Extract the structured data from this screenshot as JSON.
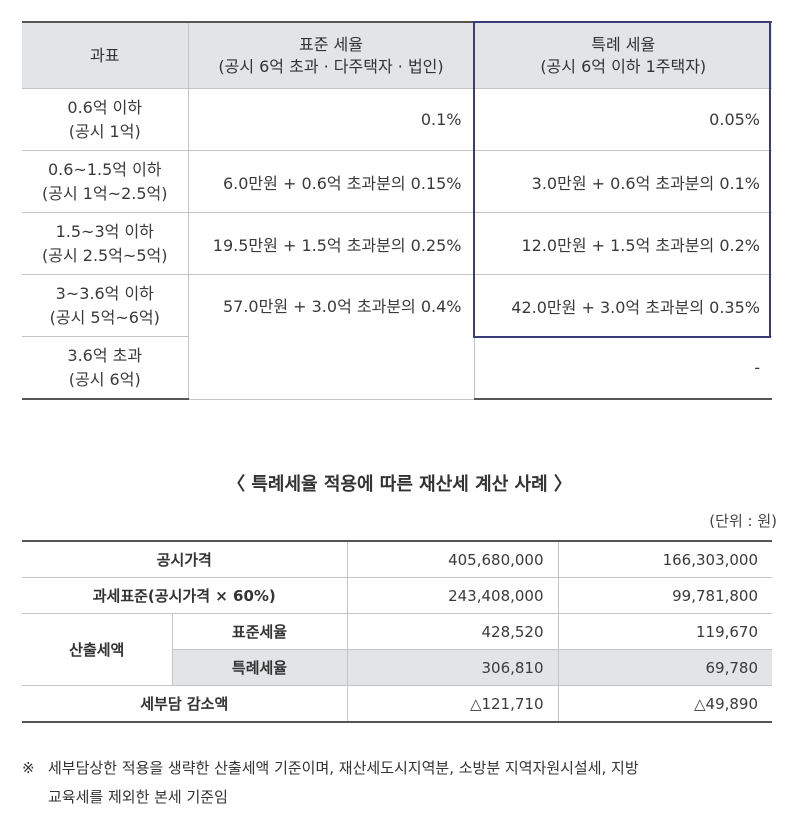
{
  "rate_table": {
    "headers": {
      "col1": "과표",
      "col2_title": "표준 세율",
      "col2_sub": "(공시 6억 초과 · 다주택자 · 법인)",
      "col3_title": "특례 세율",
      "col3_sub": "(공시 6억 이하 1주택자)"
    },
    "rows": [
      {
        "bracket": "0.6억 이하",
        "public": "(공시 1억)",
        "standard": "0.1%",
        "special": "0.05%"
      },
      {
        "bracket": "0.6~1.5억 이하",
        "public": "(공시 1억~2.5억)",
        "standard": "6.0만원 + 0.6억 초과분의 0.15%",
        "special": "3.0만원 + 0.6억 초과분의 0.1%"
      },
      {
        "bracket": "1.5~3억 이하",
        "public": "(공시 2.5억~5억)",
        "standard": "19.5만원 + 1.5억 초과분의 0.25%",
        "special": "12.0만원 + 1.5억 초과분의 0.2%"
      },
      {
        "bracket": "3~3.6억 이하",
        "public": "(공시 5억~6억)",
        "standard": "57.0만원 + 3.0억 초과분의 0.4%",
        "special": "42.0만원 + 3.0억 초과분의 0.35%"
      },
      {
        "bracket": "3.6억 초과",
        "public": "(공시 6억)",
        "special": "-"
      }
    ]
  },
  "case_title": "〈 특례세율 적용에 따른 재산세 계산 사례 〉",
  "unit_note": "(단위 : 원)",
  "case_table": {
    "public_price": {
      "label": "공시가격",
      "a": "405,680,000",
      "b": "166,303,000"
    },
    "tax_base": {
      "label": "과세표준(공시가격 × 60%)",
      "a": "243,408,000",
      "b": "99,781,800"
    },
    "calc_label": "산출세액",
    "standard": {
      "label": "표준세율",
      "a": "428,520",
      "b": "119,670"
    },
    "special": {
      "label": "특례세율",
      "a": "306,810",
      "b": "69,780"
    },
    "reduction": {
      "label": "세부담 감소액",
      "a": "△121,710",
      "b": "△49,890"
    }
  },
  "footnote": {
    "symbol": "※",
    "line1": "세부담상한 적용을 생략한 산출세액 기준이며, 재산세도시지역분, 소방분 지역자원시설세, 지방",
    "line2": "교육세를 제외한 본세 기준임"
  }
}
